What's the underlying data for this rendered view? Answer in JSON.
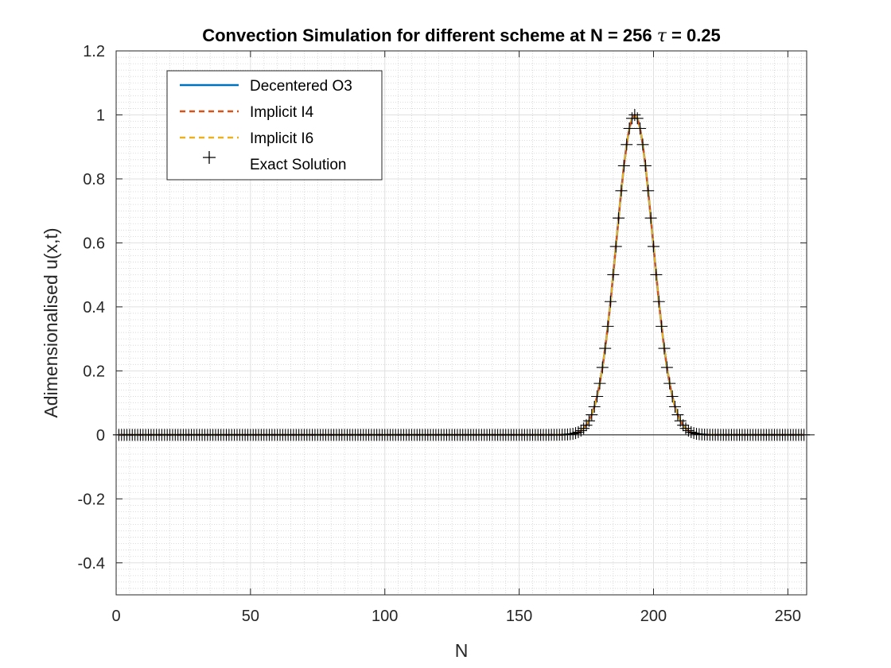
{
  "chart_data": {
    "type": "line",
    "title_prefix": "Convection Simulation for different scheme at N = 256 ",
    "title_symbol": "τ",
    "title_suffix": " = 0.25",
    "xlabel": "N",
    "ylabel": "Adimensionalised u(x,t)",
    "xlim": [
      0,
      257
    ],
    "ylim": [
      -0.5,
      1.2
    ],
    "xticks": [
      0,
      50,
      100,
      150,
      200,
      250
    ],
    "yticks": [
      -0.4,
      -0.2,
      0,
      0.2,
      0.4,
      0.6,
      0.8,
      1,
      1.2
    ],
    "ytick_labels": [
      "-0.4",
      "-0.2",
      "0",
      "0.2",
      "0.4",
      "0.6",
      "0.8",
      "1",
      "1.2"
    ],
    "grid": "major and minor",
    "legend_placement": "top-left",
    "peak_center": 193,
    "peak_sigma": 6.8,
    "n_points": 256,
    "series": [
      {
        "name": "Decentered O3",
        "style": "solid",
        "color": "#0072BD"
      },
      {
        "name": "Implicit I4",
        "style": "dashed",
        "color": "#D95319"
      },
      {
        "name": "Implicit I6",
        "style": "dashed",
        "color": "#EDB120"
      },
      {
        "name": "Exact Solution",
        "style": "marker-plus",
        "color": "#000000"
      }
    ]
  }
}
